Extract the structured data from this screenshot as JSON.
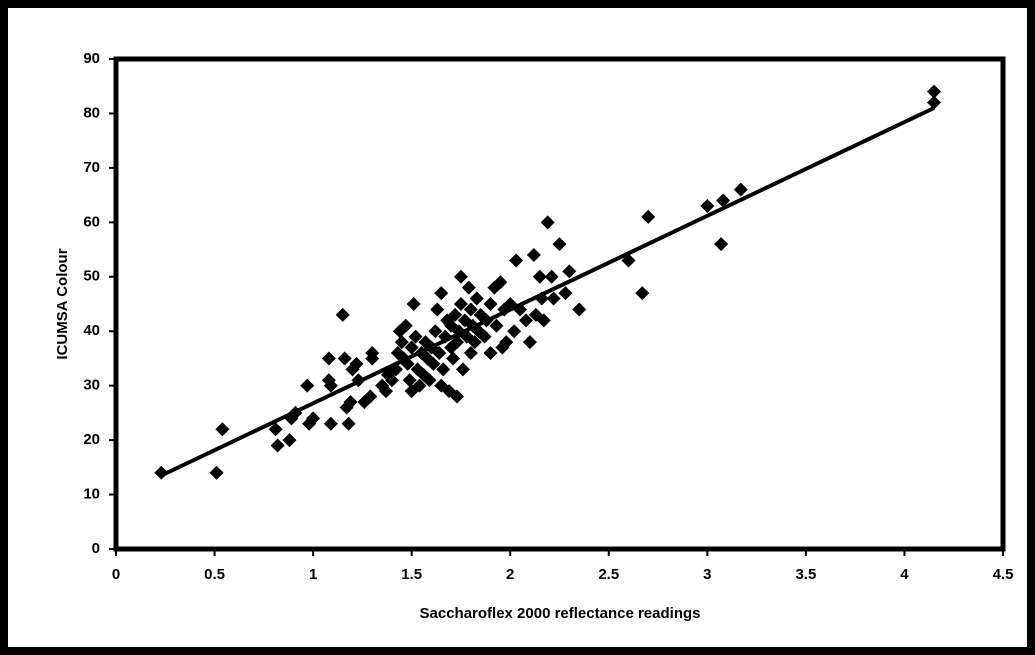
{
  "chart_data": {
    "type": "scatter",
    "x_label": "Saccharoflex 2000 reflectance readings",
    "y_label": "ICUMSA Colour",
    "color": "#000000",
    "xlim": [
      0,
      4.5
    ],
    "xticks": [
      0,
      0.5,
      1,
      1.5,
      2,
      2.5,
      3,
      3.5,
      4,
      4.5
    ],
    "ylim": [
      0,
      90
    ],
    "yticks": [
      0,
      10,
      20,
      30,
      40,
      50,
      60,
      70,
      80,
      90
    ],
    "grid": false,
    "x": [
      0.23,
      0.51,
      0.54,
      0.81,
      0.82,
      0.88,
      0.89,
      0.91,
      0.97,
      0.98,
      1.0,
      1.08,
      1.08,
      1.09,
      1.09,
      1.15,
      1.16,
      1.17,
      1.18,
      1.19,
      1.2,
      1.22,
      1.23,
      1.26,
      1.29,
      1.3,
      1.3,
      1.35,
      1.37,
      1.38,
      1.4,
      1.42,
      1.43,
      1.44,
      1.45,
      1.46,
      1.47,
      1.48,
      1.49,
      1.5,
      1.5,
      1.51,
      1.52,
      1.53,
      1.54,
      1.55,
      1.56,
      1.57,
      1.58,
      1.59,
      1.6,
      1.61,
      1.62,
      1.63,
      1.64,
      1.65,
      1.65,
      1.66,
      1.67,
      1.68,
      1.69,
      1.7,
      1.7,
      1.71,
      1.72,
      1.73,
      1.73,
      1.74,
      1.75,
      1.75,
      1.76,
      1.77,
      1.78,
      1.79,
      1.8,
      1.8,
      1.81,
      1.82,
      1.83,
      1.84,
      1.85,
      1.87,
      1.88,
      1.9,
      1.9,
      1.92,
      1.93,
      1.95,
      1.96,
      1.97,
      1.98,
      2.0,
      2.02,
      2.03,
      2.05,
      2.08,
      2.1,
      2.12,
      2.13,
      2.15,
      2.16,
      2.17,
      2.19,
      2.21,
      2.22,
      2.25,
      2.28,
      2.3,
      2.35,
      2.6,
      2.67,
      2.7,
      3.0,
      3.07,
      3.08,
      3.17,
      4.15,
      4.15
    ],
    "values": [
      14,
      14,
      22,
      22,
      19,
      20,
      24,
      25,
      30,
      23,
      24,
      35,
      31,
      30,
      23,
      43,
      35,
      26,
      23,
      27,
      33,
      34,
      31,
      27,
      28,
      35,
      36,
      30,
      29,
      32,
      31,
      33,
      36,
      40,
      38,
      35,
      41,
      34,
      31,
      29,
      37,
      45,
      39,
      33,
      30,
      36,
      32,
      38,
      35,
      31,
      37,
      34,
      40,
      44,
      36,
      47,
      30,
      33,
      39,
      42,
      29,
      37,
      41,
      35,
      43,
      28,
      38,
      40,
      50,
      45,
      33,
      42,
      39,
      48,
      36,
      44,
      41,
      38,
      46,
      40,
      43,
      39,
      42,
      36,
      45,
      48,
      41,
      49,
      37,
      44,
      38,
      45,
      40,
      53,
      44,
      42,
      38,
      54,
      43,
      50,
      46,
      42,
      60,
      50,
      46,
      56,
      47,
      51,
      44,
      53,
      47,
      61,
      63,
      56,
      64,
      66,
      84,
      82
    ],
    "trendline": {
      "x": [
        0.23,
        4.15
      ],
      "values": [
        13.5,
        81
      ]
    }
  }
}
